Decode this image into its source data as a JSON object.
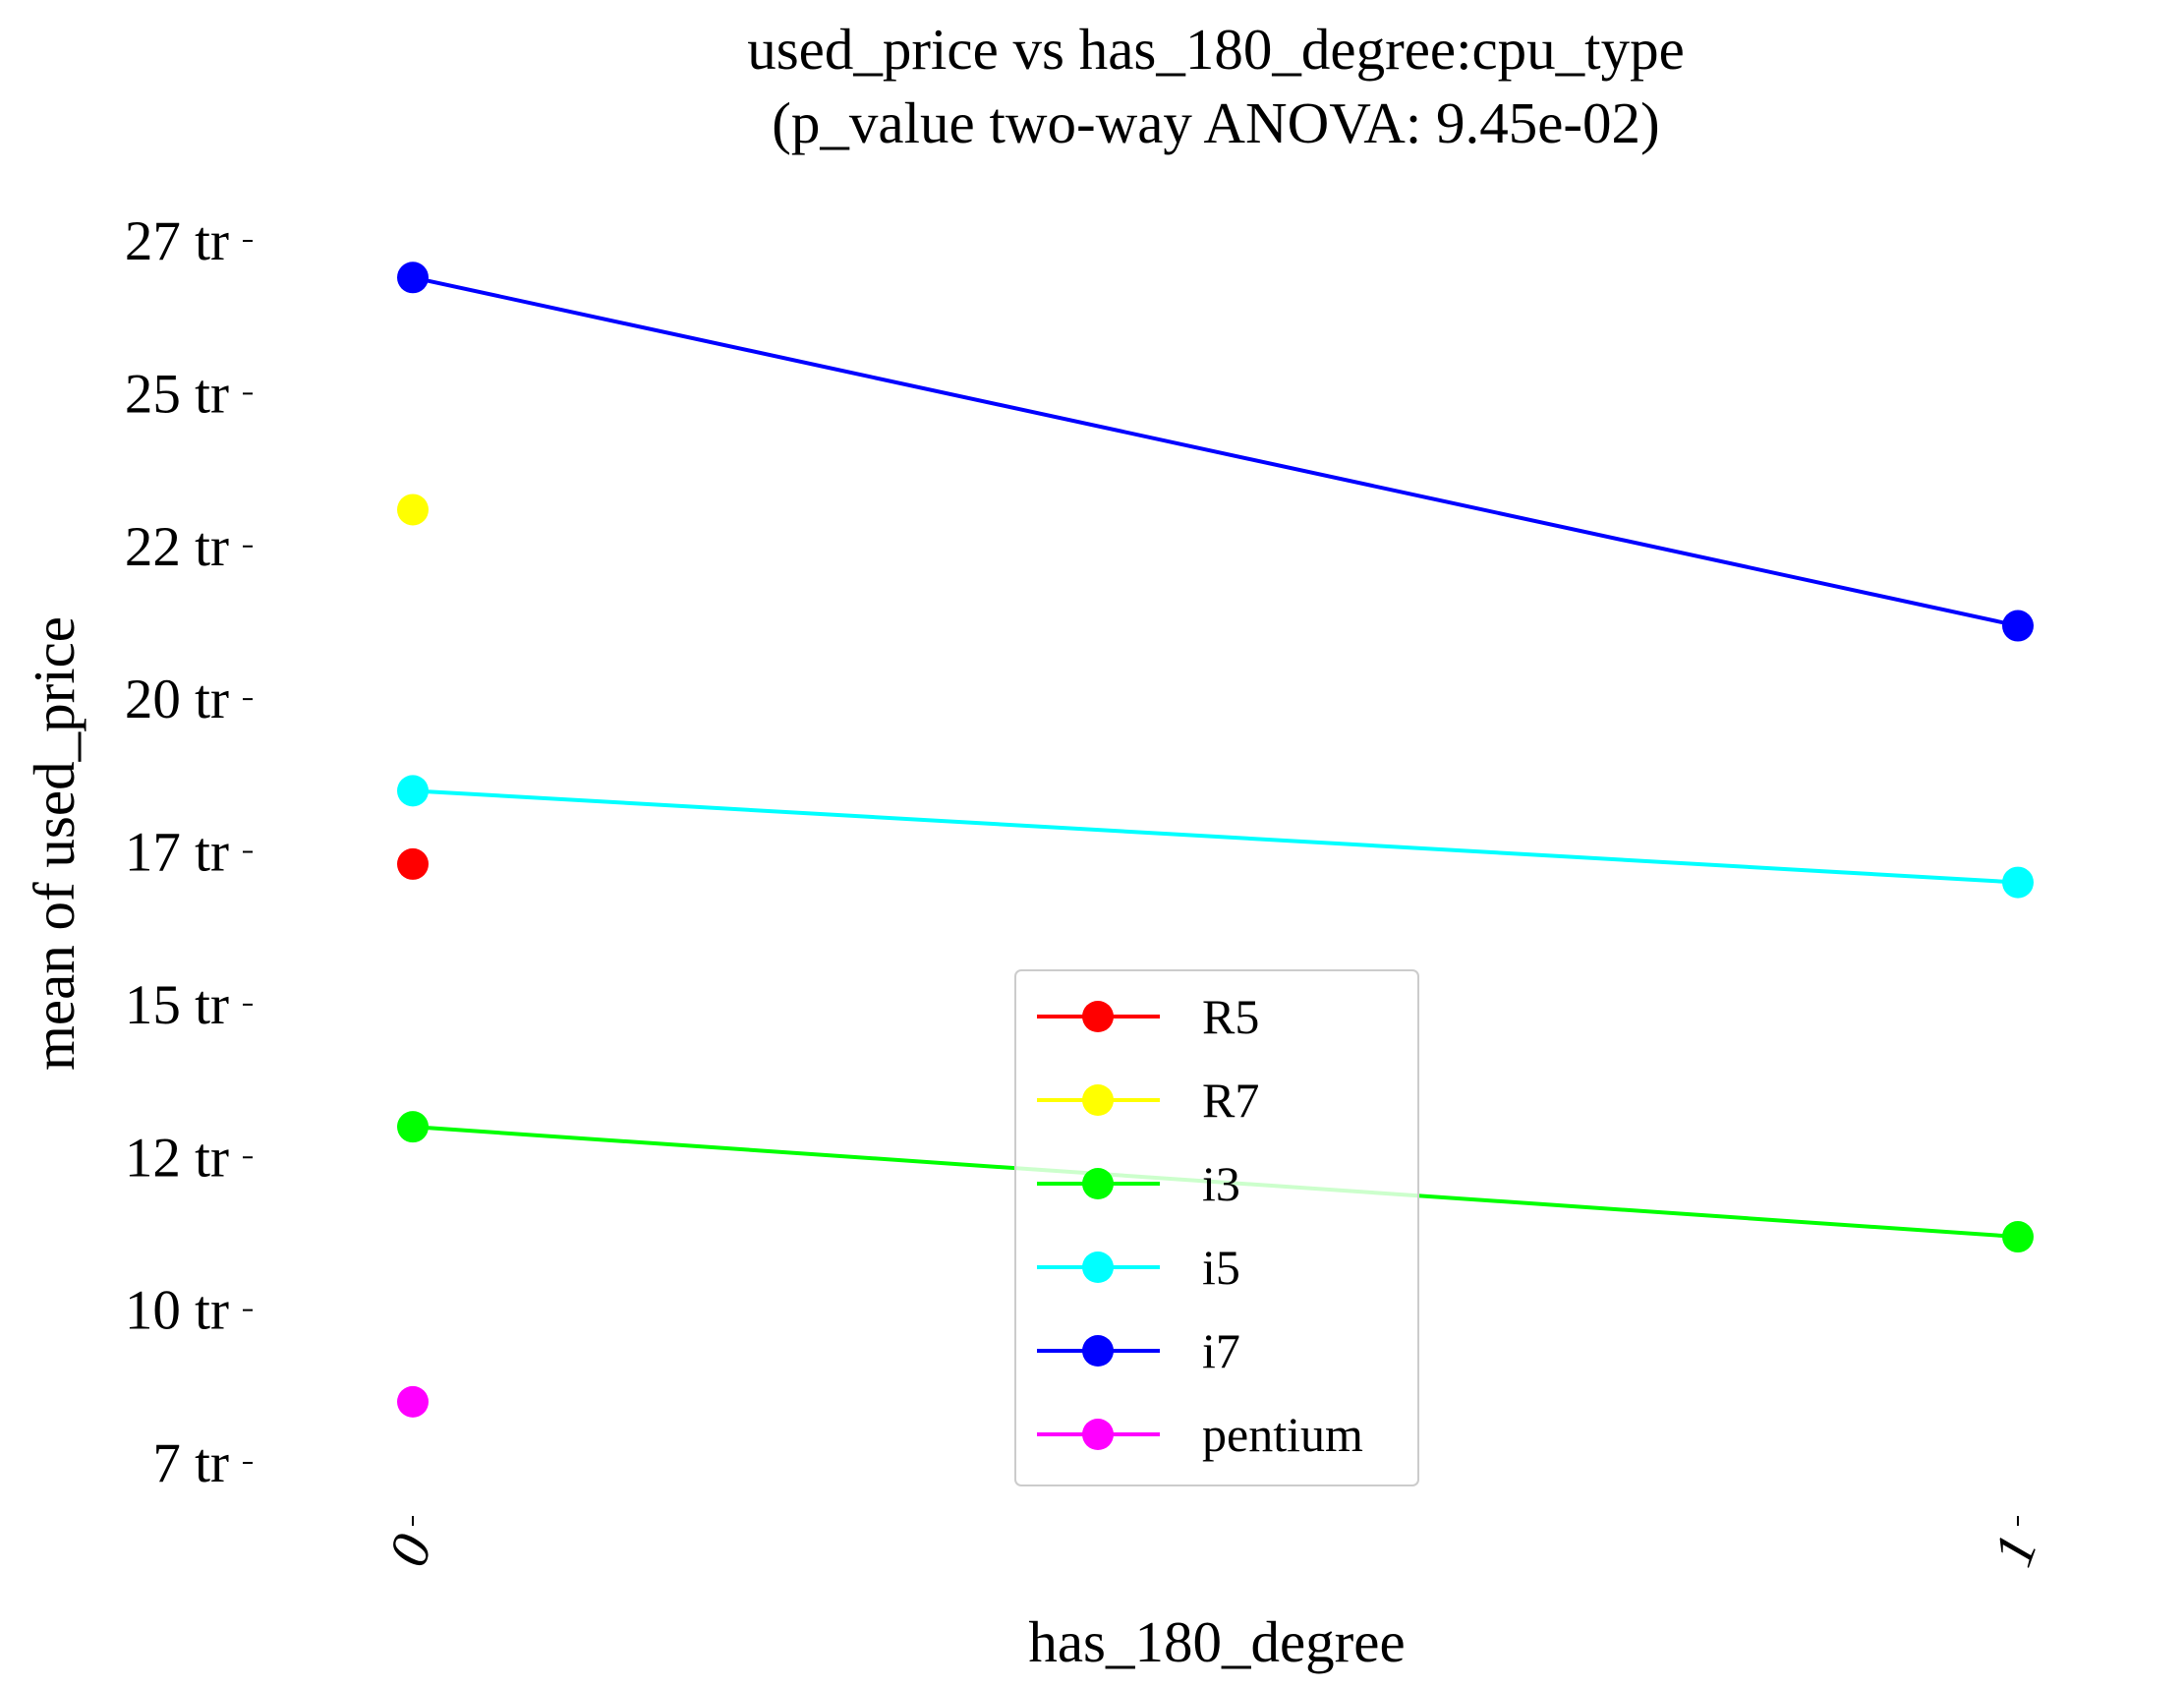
{
  "chart_data": {
    "type": "line",
    "title": "used_price vs has_180_degree:cpu_type",
    "subtitle": "(p_value two-way ANOVA: 9.45e-02)",
    "xlabel": "has_180_degree",
    "ylabel": "mean of used_price",
    "categories": [
      "0",
      "1"
    ],
    "yticks": [
      7000000,
      9500000,
      12000000,
      14500000,
      17000000,
      19500000,
      22000000,
      24500000,
      27000000
    ],
    "ytick_labels": [
      "7 tr",
      "10 tr",
      "12 tr",
      "15 tr",
      "17 tr",
      "20 tr",
      "22 tr",
      "25 tr",
      "27 tr"
    ],
    "ylim": [
      6000000,
      27500000
    ],
    "grid": false,
    "legend_position": "lower-center",
    "series": [
      {
        "name": "R5",
        "color": "#ff0000",
        "values": [
          16800000,
          null
        ]
      },
      {
        "name": "R7",
        "color": "#ffff00",
        "values": [
          22600000,
          null
        ]
      },
      {
        "name": "i3",
        "color": "#00ff00",
        "values": [
          12500000,
          10700000
        ]
      },
      {
        "name": "i5",
        "color": "#00ffff",
        "values": [
          18000000,
          16500000
        ]
      },
      {
        "name": "i7",
        "color": "#0000ff",
        "values": [
          26400000,
          20700000
        ]
      },
      {
        "name": "pentium",
        "color": "#ff00ff",
        "values": [
          8000000,
          null
        ]
      }
    ]
  }
}
